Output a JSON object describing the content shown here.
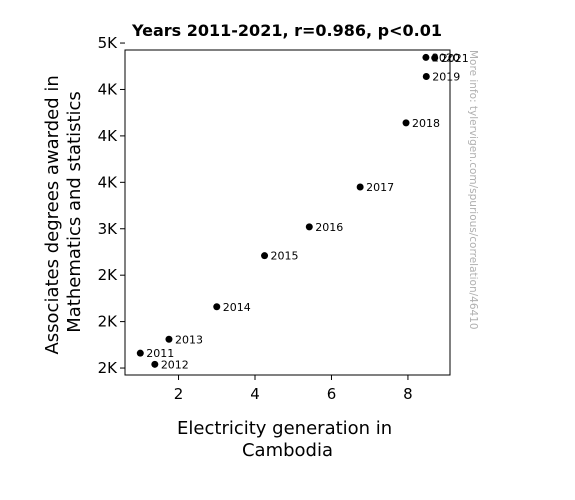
{
  "chart_data": {
    "type": "scatter",
    "title": "Years 2011-2021, r=0.986, p<0.01",
    "xlabel_lines": [
      "Electricity generation in",
      "Cambodia"
    ],
    "ylabel_lines": [
      "Associates degrees awarded in",
      "Mathematics and statistics"
    ],
    "watermark": "More info: tylervigen.com/spurious/correlation/46410",
    "xlim": [
      0.6,
      9.1
    ],
    "ylim": [
      1425,
      4925
    ],
    "x_ticks": [
      {
        "value": 2,
        "label": "2"
      },
      {
        "value": 4,
        "label": "4"
      },
      {
        "value": 6,
        "label": "6"
      },
      {
        "value": 8,
        "label": "8"
      }
    ],
    "y_ticks": [
      {
        "value": 1500,
        "label": "2K"
      },
      {
        "value": 2000,
        "label": "2K"
      },
      {
        "value": 2500,
        "label": "2K"
      },
      {
        "value": 3000,
        "label": "3K"
      },
      {
        "value": 3500,
        "label": "4K"
      },
      {
        "value": 4000,
        "label": "4K"
      },
      {
        "value": 4500,
        "label": "4K"
      },
      {
        "value": 5000,
        "label": "5K"
      }
    ],
    "points": [
      {
        "label": "2011",
        "x": 1.0,
        "y": 1660
      },
      {
        "label": "2012",
        "x": 1.38,
        "y": 1540
      },
      {
        "label": "2013",
        "x": 1.75,
        "y": 1810
      },
      {
        "label": "2014",
        "x": 3.0,
        "y": 2160
      },
      {
        "label": "2015",
        "x": 4.25,
        "y": 2710
      },
      {
        "label": "2016",
        "x": 5.42,
        "y": 3020
      },
      {
        "label": "2017",
        "x": 6.75,
        "y": 3450
      },
      {
        "label": "2018",
        "x": 7.95,
        "y": 4140
      },
      {
        "label": "2019",
        "x": 8.48,
        "y": 4640
      },
      {
        "label": "2020",
        "x": 8.47,
        "y": 4845
      },
      {
        "label": "2021",
        "x": 8.7,
        "y": 4840
      }
    ]
  }
}
